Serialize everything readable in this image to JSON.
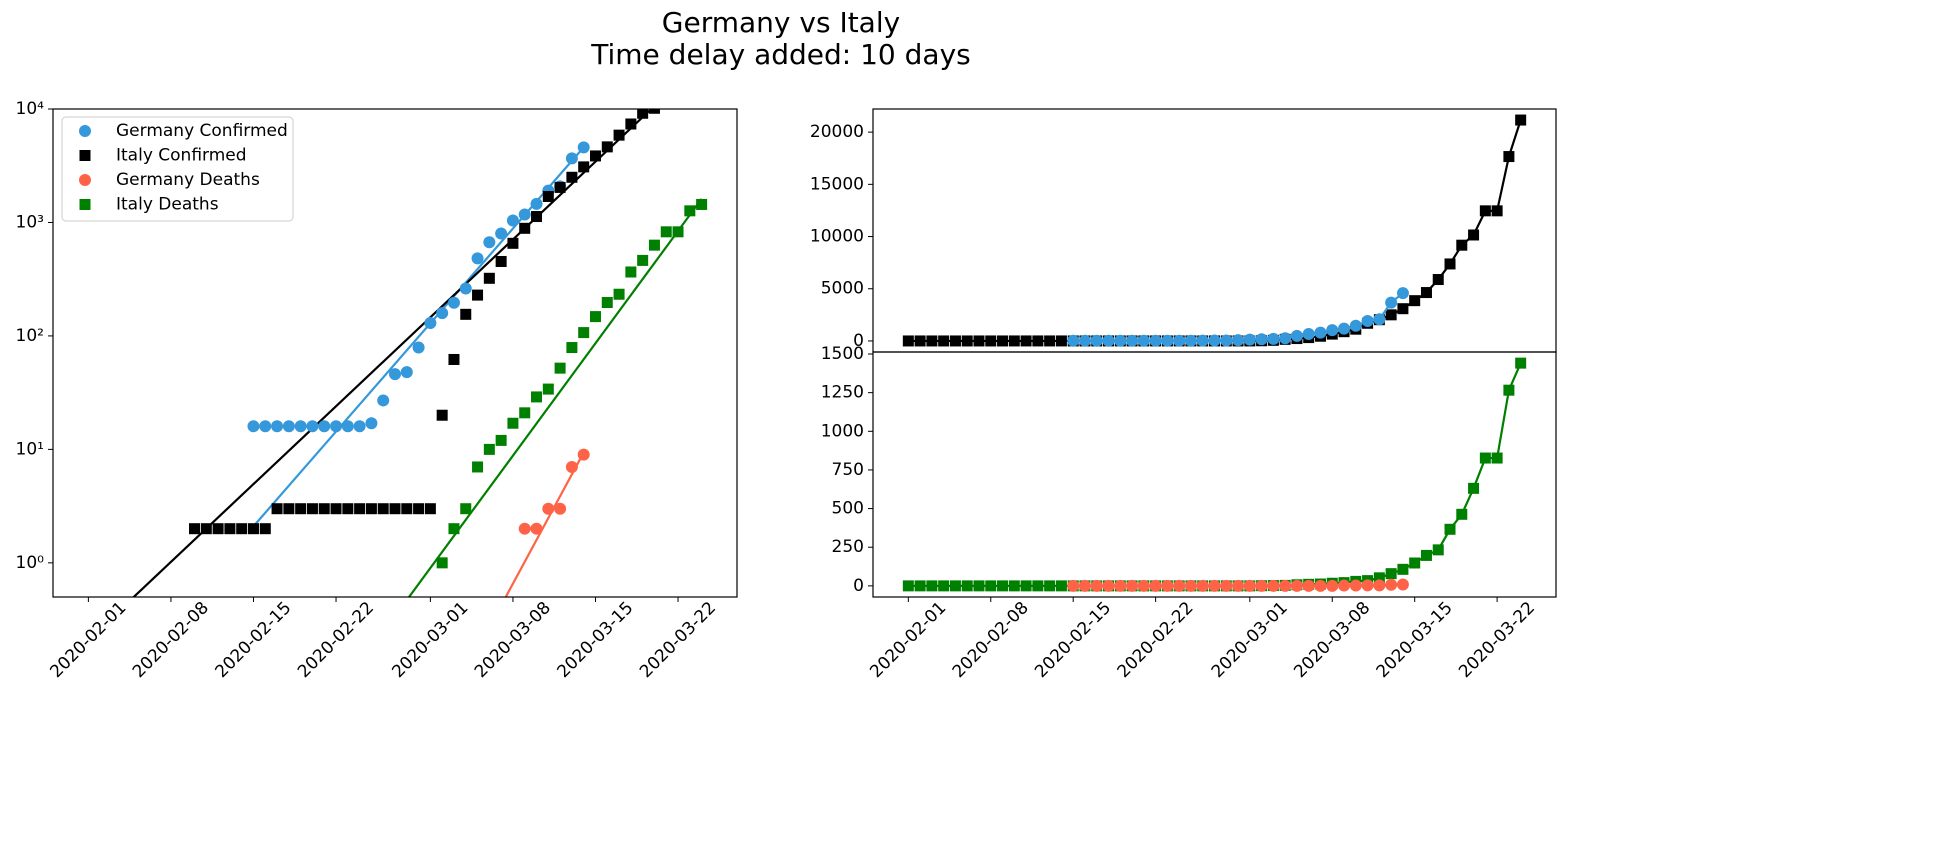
{
  "title": "Germany vs Italy",
  "subtitle": "Time delay added: 10 days",
  "chart_data": [
    {
      "type": "line",
      "yscale": "log",
      "lines": false,
      "legend": "upper left",
      "xlim": [
        "2020-01-29",
        "2020-03-27"
      ],
      "ylim": [
        0.5,
        10000
      ],
      "xticks": [
        "2020-02-01",
        "2020-02-08",
        "2020-02-15",
        "2020-02-22",
        "2020-03-01",
        "2020-03-08",
        "2020-03-15",
        "2020-03-22"
      ],
      "yticks": [
        {
          "value": 1,
          "label": "10⁰"
        },
        {
          "value": 10,
          "label": "10¹"
        },
        {
          "value": 100,
          "label": "10²"
        },
        {
          "value": 1000,
          "label": "10³"
        },
        {
          "value": 10000,
          "label": "10⁴"
        }
      ],
      "x": [
        "2020-02-01",
        "2020-02-02",
        "2020-02-03",
        "2020-02-04",
        "2020-02-05",
        "2020-02-06",
        "2020-02-07",
        "2020-02-08",
        "2020-02-09",
        "2020-02-10",
        "2020-02-11",
        "2020-02-12",
        "2020-02-13",
        "2020-02-14",
        "2020-02-15",
        "2020-02-16",
        "2020-02-17",
        "2020-02-18",
        "2020-02-19",
        "2020-02-20",
        "2020-02-21",
        "2020-02-22",
        "2020-02-23",
        "2020-02-24",
        "2020-02-25",
        "2020-02-26",
        "2020-02-27",
        "2020-02-28",
        "2020-02-29",
        "2020-03-01",
        "2020-03-02",
        "2020-03-03",
        "2020-03-04",
        "2020-03-05",
        "2020-03-06",
        "2020-03-07",
        "2020-03-08",
        "2020-03-09",
        "2020-03-10",
        "2020-03-11",
        "2020-03-12",
        "2020-03-13",
        "2020-03-14",
        "2020-03-15",
        "2020-03-16",
        "2020-03-17",
        "2020-03-18",
        "2020-03-19",
        "2020-03-20",
        "2020-03-21",
        "2020-03-22",
        "2020-03-23",
        "2020-03-24"
      ],
      "series": [
        {
          "name": "Germany Confirmed",
          "color": "#3498db",
          "marker": "circle",
          "values": [
            null,
            null,
            null,
            null,
            null,
            null,
            null,
            null,
            null,
            null,
            null,
            null,
            null,
            null,
            16,
            16,
            16,
            16,
            16,
            16,
            16,
            16,
            16,
            16,
            17,
            27,
            46,
            48,
            79,
            130,
            159,
            196,
            262,
            482,
            670,
            799,
            1040,
            1176,
            1457,
            1908,
            2078,
            3675,
            4585,
            null,
            null,
            null,
            null,
            null,
            null,
            null,
            null,
            null,
            null
          ]
        },
        {
          "name": "Italy Confirmed",
          "color": "#000000",
          "marker": "square",
          "values": [
            null,
            null,
            null,
            null,
            null,
            null,
            null,
            null,
            null,
            2,
            2,
            2,
            2,
            2,
            2,
            2,
            3,
            3,
            3,
            3,
            3,
            3,
            3,
            3,
            3,
            3,
            3,
            3,
            3,
            3,
            20,
            62,
            155,
            229,
            322,
            453,
            655,
            888,
            1128,
            1694,
            2036,
            2502,
            3089,
            3858,
            4636,
            5883,
            7375,
            9172,
            10149,
            null,
            null,
            null,
            null
          ]
        },
        {
          "name": "Germany Deaths",
          "color": "#ff6347",
          "marker": "circle",
          "values": [
            null,
            null,
            null,
            null,
            null,
            null,
            null,
            null,
            null,
            null,
            null,
            null,
            null,
            null,
            null,
            null,
            null,
            null,
            null,
            null,
            null,
            null,
            null,
            null,
            null,
            null,
            null,
            null,
            null,
            null,
            null,
            null,
            null,
            null,
            null,
            null,
            null,
            2,
            2,
            3,
            3,
            7,
            9,
            null,
            null,
            null,
            null,
            null,
            null,
            null,
            null,
            null,
            null
          ]
        },
        {
          "name": "Italy Deaths",
          "color": "#008000",
          "marker": "square",
          "values": [
            null,
            null,
            null,
            null,
            null,
            null,
            null,
            null,
            null,
            null,
            null,
            null,
            null,
            null,
            null,
            null,
            null,
            null,
            null,
            null,
            null,
            null,
            null,
            null,
            null,
            null,
            null,
            null,
            null,
            null,
            1,
            2,
            3,
            7,
            10,
            12,
            17,
            21,
            29,
            34,
            52,
            79,
            107,
            148,
            197,
            233,
            366,
            463,
            631,
            827,
            827,
            1266,
            1441
          ]
        }
      ],
      "fits": [
        {
          "color": "#3498db",
          "x": [
            "2020-02-15",
            "2020-03-14"
          ],
          "values": [
            2.1,
            4600
          ]
        },
        {
          "color": "#000000",
          "x": [
            "2020-02-01",
            "2020-03-24"
          ],
          "values": [
            0.21,
            26200
          ]
        },
        {
          "color": "#ff6347",
          "x": [
            "2020-03-07",
            "2020-03-14"
          ],
          "values": [
            0.42,
            9.4
          ]
        },
        {
          "color": "#008000",
          "x": [
            "2020-02-28",
            "2020-03-24"
          ],
          "values": [
            0.47,
            1614
          ]
        }
      ]
    },
    {
      "type": "line",
      "lines": true,
      "xlim": [
        "2020-01-29",
        "2020-03-27"
      ],
      "ylim": [
        -1058,
        22215
      ],
      "yticks": [
        0,
        5000,
        10000,
        15000,
        20000
      ],
      "x": [
        "2020-02-01",
        "2020-02-02",
        "2020-02-03",
        "2020-02-04",
        "2020-02-05",
        "2020-02-06",
        "2020-02-07",
        "2020-02-08",
        "2020-02-09",
        "2020-02-10",
        "2020-02-11",
        "2020-02-12",
        "2020-02-13",
        "2020-02-14",
        "2020-02-15",
        "2020-02-16",
        "2020-02-17",
        "2020-02-18",
        "2020-02-19",
        "2020-02-20",
        "2020-02-21",
        "2020-02-22",
        "2020-02-23",
        "2020-02-24",
        "2020-02-25",
        "2020-02-26",
        "2020-02-27",
        "2020-02-28",
        "2020-02-29",
        "2020-03-01",
        "2020-03-02",
        "2020-03-03",
        "2020-03-04",
        "2020-03-05",
        "2020-03-06",
        "2020-03-07",
        "2020-03-08",
        "2020-03-09",
        "2020-03-10",
        "2020-03-11",
        "2020-03-12",
        "2020-03-13",
        "2020-03-14",
        "2020-03-15",
        "2020-03-16",
        "2020-03-17",
        "2020-03-18",
        "2020-03-19",
        "2020-03-20",
        "2020-03-21",
        "2020-03-22",
        "2020-03-23",
        "2020-03-24"
      ],
      "series": [
        {
          "color": "#000000",
          "marker": "square",
          "values": [
            0,
            0,
            0,
            0,
            0,
            0,
            0,
            0,
            0,
            2,
            2,
            2,
            2,
            2,
            2,
            2,
            3,
            3,
            3,
            3,
            3,
            3,
            3,
            3,
            3,
            3,
            3,
            3,
            3,
            3,
            20,
            62,
            155,
            229,
            322,
            453,
            655,
            888,
            1128,
            1694,
            2036,
            2502,
            3089,
            3858,
            4636,
            5883,
            7375,
            9172,
            10149,
            12462,
            12462,
            17660,
            21157
          ]
        },
        {
          "color": "#3498db",
          "marker": "circle",
          "values": [
            null,
            null,
            null,
            null,
            null,
            null,
            null,
            null,
            null,
            null,
            null,
            null,
            null,
            null,
            16,
            16,
            16,
            16,
            16,
            16,
            16,
            16,
            16,
            16,
            17,
            27,
            46,
            48,
            79,
            130,
            159,
            196,
            262,
            482,
            670,
            799,
            1040,
            1176,
            1457,
            1908,
            2078,
            3675,
            4585,
            null,
            null,
            null,
            null,
            null,
            null,
            null,
            null,
            null,
            null
          ]
        }
      ]
    },
    {
      "type": "line",
      "lines": true,
      "xlim": [
        "2020-01-29",
        "2020-03-27"
      ],
      "ylim": [
        -72,
        1513
      ],
      "xticks": [
        "2020-02-01",
        "2020-02-08",
        "2020-02-15",
        "2020-02-22",
        "2020-03-01",
        "2020-03-08",
        "2020-03-15",
        "2020-03-22"
      ],
      "yticks": [
        0,
        250,
        500,
        750,
        1000,
        1250,
        1500
      ],
      "x": [
        "2020-02-01",
        "2020-02-02",
        "2020-02-03",
        "2020-02-04",
        "2020-02-05",
        "2020-02-06",
        "2020-02-07",
        "2020-02-08",
        "2020-02-09",
        "2020-02-10",
        "2020-02-11",
        "2020-02-12",
        "2020-02-13",
        "2020-02-14",
        "2020-02-15",
        "2020-02-16",
        "2020-02-17",
        "2020-02-18",
        "2020-02-19",
        "2020-02-20",
        "2020-02-21",
        "2020-02-22",
        "2020-02-23",
        "2020-02-24",
        "2020-02-25",
        "2020-02-26",
        "2020-02-27",
        "2020-02-28",
        "2020-02-29",
        "2020-03-01",
        "2020-03-02",
        "2020-03-03",
        "2020-03-04",
        "2020-03-05",
        "2020-03-06",
        "2020-03-07",
        "2020-03-08",
        "2020-03-09",
        "2020-03-10",
        "2020-03-11",
        "2020-03-12",
        "2020-03-13",
        "2020-03-14",
        "2020-03-15",
        "2020-03-16",
        "2020-03-17",
        "2020-03-18",
        "2020-03-19",
        "2020-03-20",
        "2020-03-21",
        "2020-03-22",
        "2020-03-23",
        "2020-03-24"
      ],
      "series": [
        {
          "color": "#008000",
          "marker": "square",
          "values": [
            0,
            0,
            0,
            0,
            0,
            0,
            0,
            0,
            0,
            0,
            0,
            0,
            0,
            0,
            0,
            0,
            0,
            0,
            0,
            0,
            0,
            0,
            0,
            0,
            0,
            0,
            0,
            0,
            0,
            0,
            1,
            2,
            3,
            7,
            10,
            12,
            17,
            21,
            29,
            34,
            52,
            79,
            107,
            148,
            197,
            233,
            366,
            463,
            631,
            827,
            827,
            1266,
            1441
          ]
        },
        {
          "color": "#ff6347",
          "marker": "circle",
          "values": [
            null,
            null,
            null,
            null,
            null,
            null,
            null,
            null,
            null,
            null,
            null,
            null,
            null,
            null,
            0,
            0,
            0,
            0,
            0,
            0,
            0,
            0,
            0,
            0,
            0,
            0,
            0,
            0,
            0,
            0,
            0,
            0,
            0,
            0,
            0,
            0,
            0,
            2,
            2,
            3,
            3,
            7,
            9,
            null,
            null,
            null,
            null,
            null,
            null,
            null,
            null,
            null,
            null
          ]
        }
      ]
    }
  ]
}
